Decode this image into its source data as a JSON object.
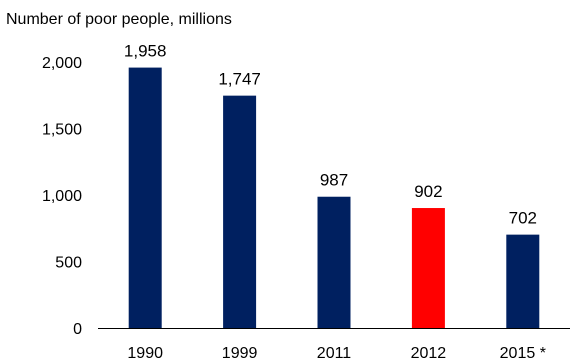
{
  "chart_data": {
    "type": "bar",
    "title": "Number of poor people, millions",
    "xlabel": "",
    "ylabel": "",
    "categories": [
      "1990",
      "1999",
      "2011",
      "2012",
      "2015 *"
    ],
    "values": [
      1958,
      1747,
      987,
      902,
      702
    ],
    "data_labels": [
      "1,958",
      "1,747",
      "987",
      "902",
      "702"
    ],
    "y_ticks": [
      0,
      500,
      1000,
      1500,
      2000
    ],
    "y_tick_labels": [
      "0",
      "500",
      "1,000",
      "1,500",
      "2,000"
    ],
    "ylim": [
      0,
      2000
    ],
    "grid": false,
    "legend": "none",
    "colors": {
      "default": "#002060",
      "highlight": "#ff0000",
      "bar_colors": [
        "#002060",
        "#002060",
        "#002060",
        "#ff0000",
        "#002060"
      ],
      "axis": "#000000"
    }
  }
}
